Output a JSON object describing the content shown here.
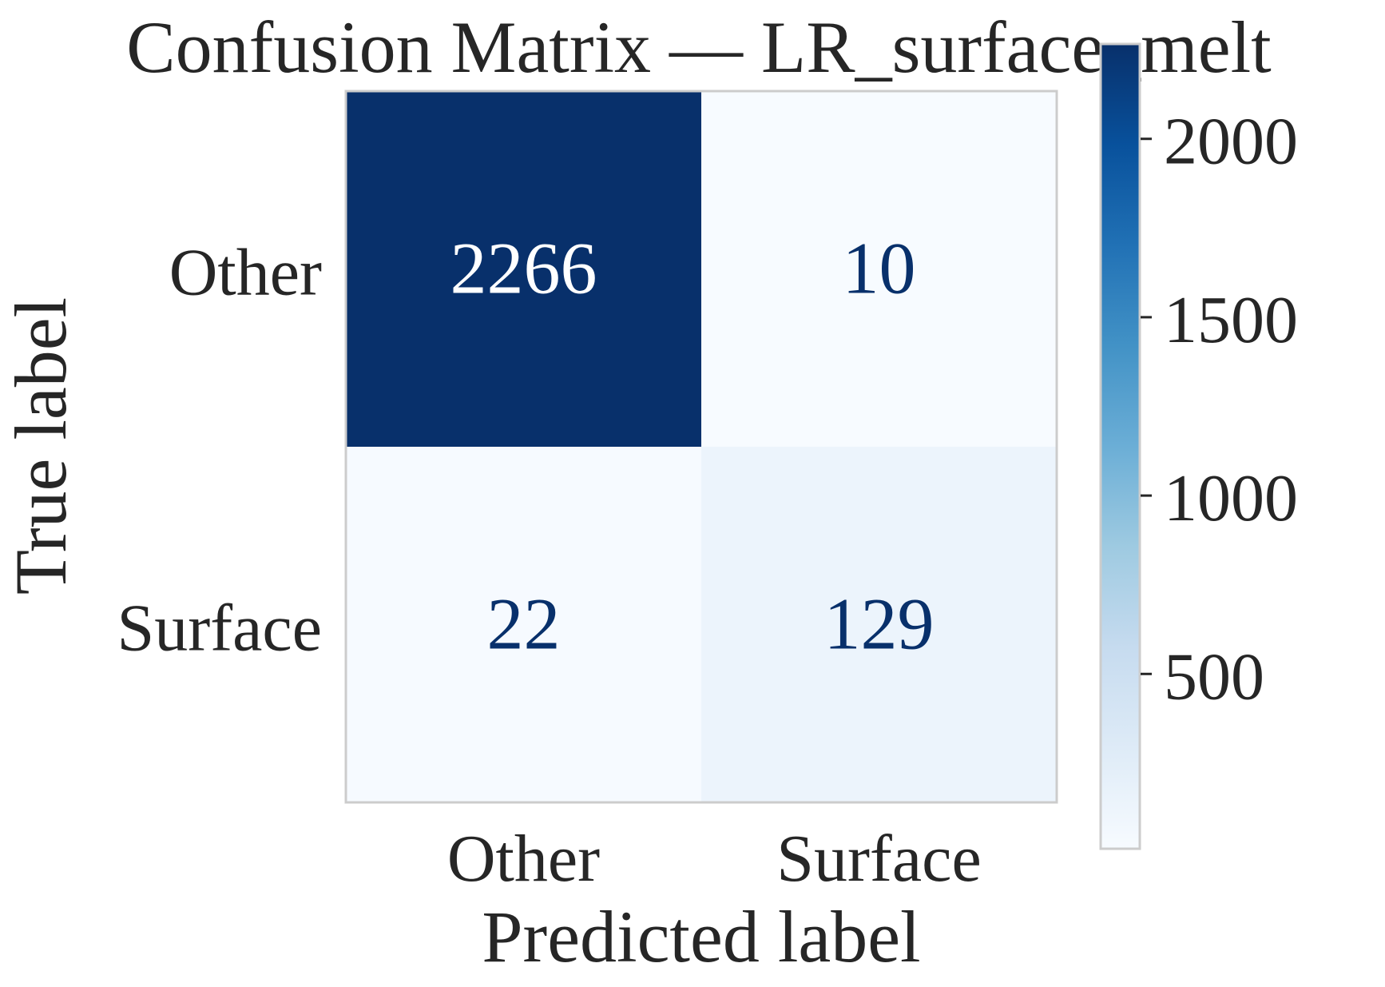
{
  "chart_data": {
    "type": "heatmap",
    "title": "Confusion Matrix — LR_surface_melt",
    "xlabel": "Predicted label",
    "ylabel": "True label",
    "x_categories": [
      "Other",
      "Surface"
    ],
    "y_categories": [
      "Other",
      "Surface"
    ],
    "matrix": [
      [
        2266,
        10
      ],
      [
        22,
        129
      ]
    ],
    "colormap": "Blues",
    "colorbar": {
      "range": [
        10,
        2266
      ],
      "ticks": [
        500,
        1000,
        1500,
        2000
      ],
      "tick_labels": [
        "500",
        "1000",
        "1500",
        "2000"
      ]
    },
    "colors": {
      "text_on_dark": "#ffffff",
      "text_on_light": "#08306b",
      "axis_text": "#262626",
      "frame": "#cccccc"
    }
  }
}
